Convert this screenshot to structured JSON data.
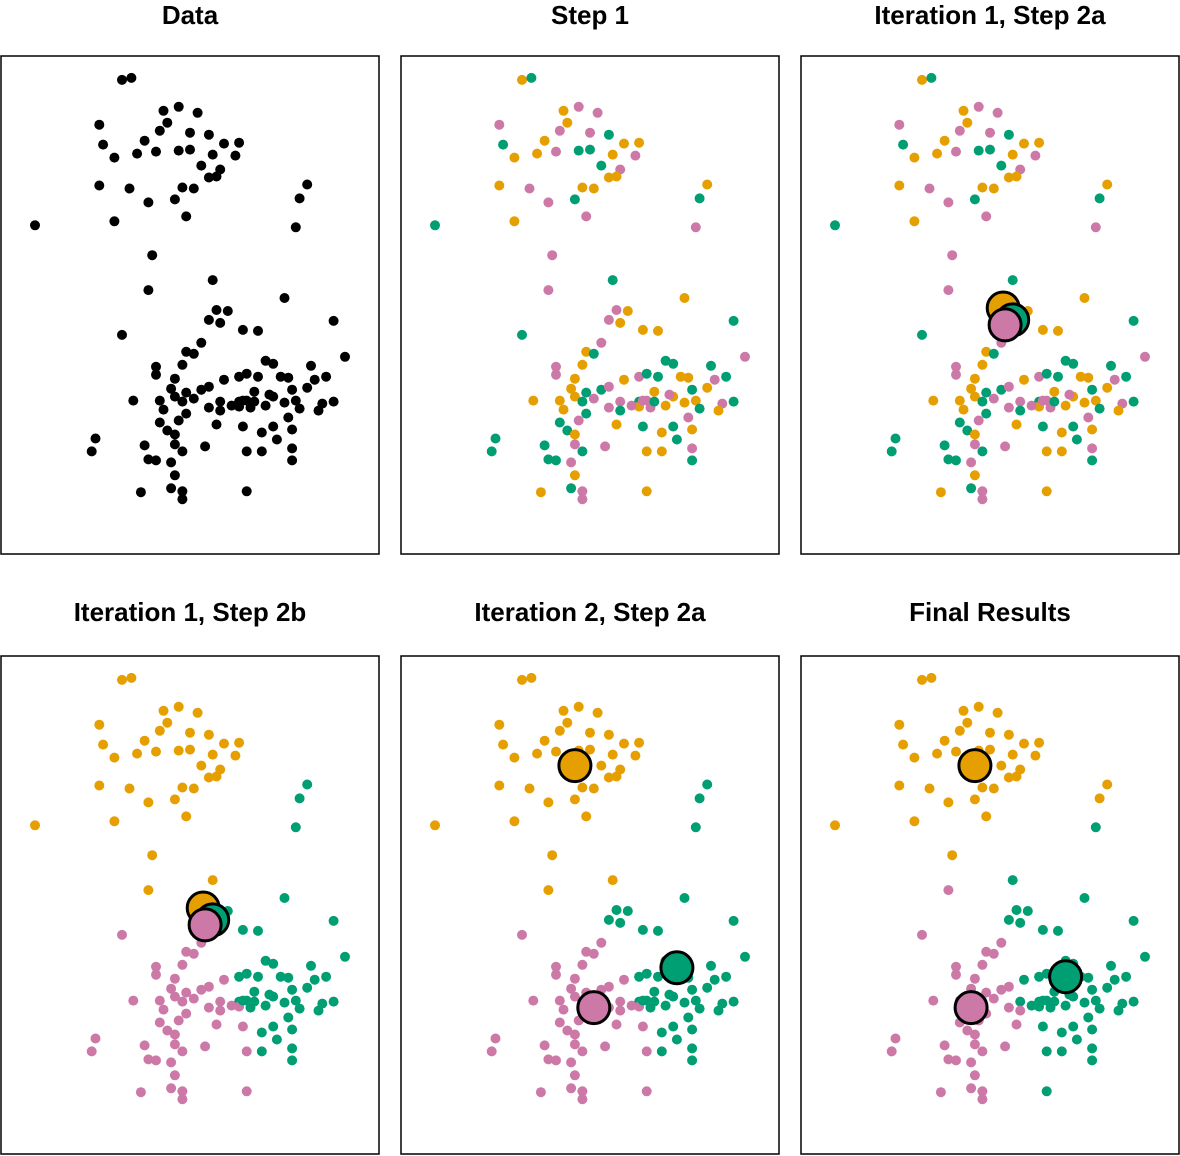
{
  "colors": {
    "orange": "#E69F00",
    "green": "#009E73",
    "pink": "#CC79A7",
    "black": "#000000"
  },
  "chart_data": {
    "type": "scatter",
    "description_panels": [
      "Data",
      "Step 1",
      "Iteration 1, Step 2a",
      "Iteration 1, Step 2b",
      "Iteration 2, Step 2a",
      "Final Results"
    ],
    "xlim": [
      0,
      100
    ],
    "ylim": [
      0,
      100
    ],
    "points": [
      [
        32.0,
        95.2
      ],
      [
        34.5,
        95.6
      ],
      [
        26.0,
        86.2
      ],
      [
        43.0,
        89.0
      ],
      [
        47.0,
        89.8
      ],
      [
        52.0,
        88.6
      ],
      [
        42.0,
        85.0
      ],
      [
        44.0,
        86.6
      ],
      [
        50.0,
        84.6
      ],
      [
        38.0,
        83.0
      ],
      [
        55.0,
        84.2
      ],
      [
        59.0,
        82.4
      ],
      [
        27.0,
        82.2
      ],
      [
        36.0,
        80.4
      ],
      [
        41.0,
        80.8
      ],
      [
        47.0,
        81.0
      ],
      [
        50.0,
        81.2
      ],
      [
        56.0,
        80.2
      ],
      [
        30.0,
        79.6
      ],
      [
        53.0,
        78.0
      ],
      [
        63.0,
        82.6
      ],
      [
        58.0,
        77.2
      ],
      [
        62.0,
        80.0
      ],
      [
        55.0,
        75.6
      ],
      [
        57.0,
        75.8
      ],
      [
        26.0,
        74.0
      ],
      [
        34.0,
        73.4
      ],
      [
        48.0,
        73.6
      ],
      [
        51.0,
        73.4
      ],
      [
        81.0,
        74.2
      ],
      [
        39.0,
        70.6
      ],
      [
        46.0,
        71.2
      ],
      [
        79.0,
        71.4
      ],
      [
        49.0,
        67.8
      ],
      [
        30.0,
        66.8
      ],
      [
        9.0,
        66.0
      ],
      [
        78.0,
        65.6
      ],
      [
        40.0,
        60.0
      ],
      [
        39.0,
        53.0
      ],
      [
        56.0,
        55.0
      ],
      [
        75.0,
        51.4
      ],
      [
        57.0,
        49.0
      ],
      [
        60.0,
        48.8
      ],
      [
        55.0,
        47.0
      ],
      [
        58.0,
        46.4
      ],
      [
        88.0,
        46.8
      ],
      [
        64.0,
        45.0
      ],
      [
        32.0,
        44.0
      ],
      [
        68.0,
        44.8
      ],
      [
        53.0,
        42.4
      ],
      [
        49.0,
        40.6
      ],
      [
        51.0,
        40.2
      ],
      [
        91.0,
        39.6
      ],
      [
        82.0,
        37.8
      ],
      [
        70.0,
        38.8
      ],
      [
        41.0,
        37.6
      ],
      [
        48.0,
        38.0
      ],
      [
        72.0,
        38.2
      ],
      [
        41.0,
        36.0
      ],
      [
        46.0,
        35.2
      ],
      [
        59.0,
        35.0
      ],
      [
        63.0,
        35.6
      ],
      [
        65.0,
        36.2
      ],
      [
        68.0,
        35.6
      ],
      [
        74.0,
        35.6
      ],
      [
        76.0,
        35.4
      ],
      [
        86.0,
        35.6
      ],
      [
        53.0,
        33.0
      ],
      [
        49.0,
        32.4
      ],
      [
        55.0,
        33.6
      ],
      [
        45.0,
        33.2
      ],
      [
        77.0,
        33.0
      ],
      [
        81.0,
        33.4
      ],
      [
        83.0,
        35.0
      ],
      [
        46.0,
        31.6
      ],
      [
        51.0,
        31.2
      ],
      [
        42.0,
        30.8
      ],
      [
        48.0,
        30.6
      ],
      [
        58.0,
        30.6
      ],
      [
        63.0,
        30.6
      ],
      [
        65.0,
        30.8
      ],
      [
        72.0,
        31.6
      ],
      [
        75.0,
        30.4
      ],
      [
        78.0,
        30.8
      ],
      [
        85.0,
        30.2
      ],
      [
        88.0,
        30.6
      ],
      [
        35.0,
        30.8
      ],
      [
        43.0,
        29.0
      ],
      [
        55.0,
        29.4
      ],
      [
        63.0,
        29.6
      ],
      [
        66.0,
        29.4
      ],
      [
        67.0,
        30.6
      ],
      [
        70.0,
        29.8
      ],
      [
        79.0,
        29.2
      ],
      [
        84.0,
        28.8
      ],
      [
        49.0,
        28.2
      ],
      [
        58.0,
        28.8
      ],
      [
        61.0,
        29.8
      ],
      [
        64.0,
        30.8
      ],
      [
        71.0,
        32.0
      ],
      [
        67.0,
        32.6
      ],
      [
        47.0,
        26.8
      ],
      [
        42.0,
        26.4
      ],
      [
        57.0,
        26.0
      ],
      [
        64.0,
        25.6
      ],
      [
        72.0,
        25.6
      ],
      [
        76.0,
        27.4
      ],
      [
        44.0,
        24.8
      ],
      [
        46.0,
        24.0
      ],
      [
        69.0,
        24.4
      ],
      [
        77.0,
        25.0
      ],
      [
        25.0,
        23.2
      ],
      [
        46.0,
        22.0
      ],
      [
        38.0,
        21.8
      ],
      [
        54.0,
        21.6
      ],
      [
        73.0,
        23.0
      ],
      [
        24.0,
        20.6
      ],
      [
        48.0,
        20.6
      ],
      [
        65.0,
        20.6
      ],
      [
        69.0,
        20.6
      ],
      [
        77.0,
        21.2
      ],
      [
        39.0,
        19.0
      ],
      [
        41.0,
        18.8
      ],
      [
        45.0,
        18.4
      ],
      [
        77.0,
        18.8
      ],
      [
        46.0,
        15.8
      ],
      [
        37.0,
        12.4
      ],
      [
        45.0,
        13.2
      ],
      [
        48.0,
        12.6
      ],
      [
        65.0,
        12.6
      ],
      [
        48.0,
        11.0
      ]
    ],
    "step1_labels": [
      "orange",
      "green",
      "pink",
      "orange",
      "pink",
      "pink",
      "pink",
      "orange",
      "pink",
      "orange",
      "green",
      "orange",
      "green",
      "orange",
      "pink",
      "green",
      "green",
      "orange",
      "orange",
      "green",
      "orange",
      "pink",
      "pink",
      "orange",
      "orange",
      "orange",
      "pink",
      "orange",
      "orange",
      "orange",
      "pink",
      "green",
      "green",
      "pink",
      "orange",
      "green",
      "pink",
      "pink",
      "pink",
      "green",
      "orange",
      "pink",
      "orange",
      "pink",
      "orange",
      "green",
      "orange",
      "green",
      "orange",
      "pink",
      "orange",
      "green",
      "pink",
      "green",
      "green",
      "pink",
      "orange",
      "green",
      "pink",
      "orange",
      "orange",
      "pink",
      "green",
      "green",
      "orange",
      "orange",
      "green",
      "green",
      "green",
      "pink",
      "orange",
      "green",
      "orange",
      "pink",
      "orange",
      "pink",
      "orange",
      "green",
      "pink",
      "green",
      "pink",
      "orange",
      "orange",
      "orange",
      "pink",
      "green",
      "orange",
      "orange",
      "pink",
      "orange",
      "pink",
      "green",
      "orange",
      "green",
      "orange",
      "green",
      "green",
      "pink",
      "pink",
      "pink",
      "orange",
      "pink",
      "green",
      "orange",
      "green",
      "green",
      "pink",
      "green",
      "orange",
      "orange",
      "orange",
      "green",
      "pink",
      "green",
      "pink",
      "green",
      "green",
      "green",
      "orange",
      "orange",
      "pink",
      "green",
      "green",
      "pink",
      "green",
      "orange",
      "orange",
      "green",
      "pink",
      "orange",
      "pink",
      "orange",
      "orange"
    ],
    "panels": [
      {
        "title": "Data",
        "color_mode": "black",
        "centroids": []
      },
      {
        "title": "Step 1",
        "color_mode": "step1",
        "centroids": []
      },
      {
        "title": "Iteration 1, Step 2a",
        "color_mode": "step1",
        "centroids": [
          {
            "color": "orange",
            "x": 53.5,
            "y": 49.4
          },
          {
            "color": "green",
            "x": 56.0,
            "y": 47.0
          },
          {
            "color": "pink",
            "x": 54.0,
            "y": 46.0
          }
        ]
      },
      {
        "title": "Iteration 1, Step 2b",
        "color_mode": "step2b",
        "centroids": [
          {
            "color": "orange",
            "x": 53.5,
            "y": 49.4
          },
          {
            "color": "green",
            "x": 56.0,
            "y": 47.0
          },
          {
            "color": "pink",
            "x": 54.0,
            "y": 46.0
          }
        ]
      },
      {
        "title": "Iteration 2, Step 2a",
        "color_mode": "step2b",
        "centroids": [
          {
            "color": "orange",
            "x": 46.0,
            "y": 78.0
          },
          {
            "color": "green",
            "x": 73.0,
            "y": 37.4
          },
          {
            "color": "pink",
            "x": 51.0,
            "y": 29.4
          }
        ]
      },
      {
        "title": "Final Results",
        "color_mode": "final",
        "centroids": [
          {
            "color": "orange",
            "x": 46.0,
            "y": 78.0
          },
          {
            "color": "green",
            "x": 70.0,
            "y": 35.6
          },
          {
            "color": "pink",
            "x": 45.0,
            "y": 29.4
          }
        ]
      }
    ],
    "xlabel": "",
    "ylabel": "",
    "grid": false
  }
}
